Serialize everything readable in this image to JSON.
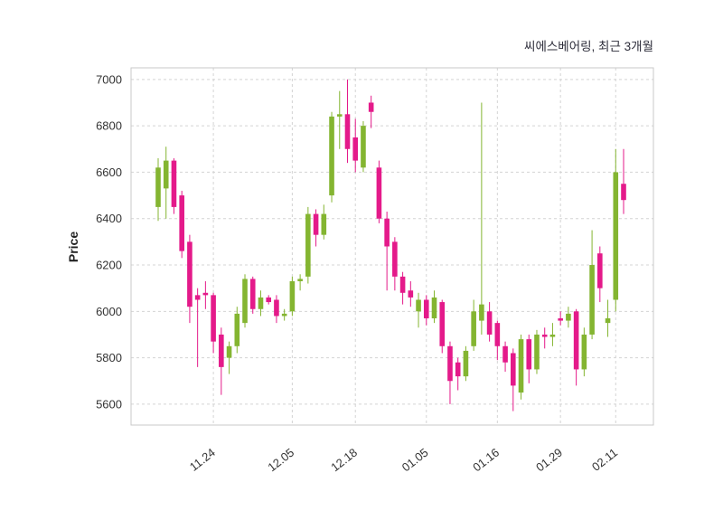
{
  "chart_data": {
    "type": "candlestick",
    "title": "씨에스베어링, 최근 3개월",
    "ylabel": "Price",
    "xlabel": "",
    "ylim": [
      5510,
      7050
    ],
    "yticks": [
      5600,
      5800,
      6000,
      6200,
      6400,
      6600,
      6800,
      7000
    ],
    "grid": true,
    "legend": "none",
    "up_color": "#84b531",
    "down_color": "#e41a8a",
    "grid_color": "#d4d4d4",
    "border_color": "#c9c9c9",
    "ohlc_format": [
      "open",
      "high",
      "low",
      "close"
    ],
    "xticks": [
      {
        "i": 7,
        "label": "11.24"
      },
      {
        "i": 17,
        "label": "12.05"
      },
      {
        "i": 25,
        "label": "12.18"
      },
      {
        "i": 34,
        "label": "01.05"
      },
      {
        "i": 43,
        "label": "01.16"
      },
      {
        "i": 51,
        "label": "01.29"
      },
      {
        "i": 58,
        "label": "02.11"
      }
    ],
    "candles": [
      [
        6450,
        6660,
        6390,
        6620
      ],
      [
        6530,
        6710,
        6400,
        6650
      ],
      [
        6650,
        6660,
        6420,
        6450
      ],
      [
        6500,
        6520,
        6230,
        6260
      ],
      [
        6300,
        6330,
        5950,
        6020
      ],
      [
        6070,
        6100,
        5760,
        6050
      ],
      [
        6080,
        6130,
        6010,
        6070
      ],
      [
        6070,
        6080,
        5820,
        5870
      ],
      [
        5900,
        5930,
        5640,
        5760
      ],
      [
        5800,
        5870,
        5730,
        5850
      ],
      [
        5850,
        6020,
        5820,
        5990
      ],
      [
        5950,
        6160,
        5930,
        6140
      ],
      [
        6140,
        6150,
        5990,
        6010
      ],
      [
        6010,
        6090,
        5980,
        6060
      ],
      [
        6060,
        6070,
        6030,
        6040
      ],
      [
        6050,
        6070,
        5950,
        5980
      ],
      [
        5980,
        6010,
        5960,
        5990
      ],
      [
        6000,
        6150,
        5980,
        6130
      ],
      [
        6130,
        6160,
        6090,
        6140
      ],
      [
        6150,
        6450,
        6120,
        6420
      ],
      [
        6420,
        6440,
        6280,
        6330
      ],
      [
        6330,
        6460,
        6310,
        6420
      ],
      [
        6500,
        6860,
        6470,
        6840
      ],
      [
        6840,
        6950,
        6700,
        6850
      ],
      [
        6850,
        7000,
        6640,
        6700
      ],
      [
        6750,
        6830,
        6600,
        6650
      ],
      [
        6620,
        6820,
        6600,
        6800
      ],
      [
        6900,
        6930,
        6790,
        6860
      ],
      [
        6620,
        6650,
        6380,
        6400
      ],
      [
        6400,
        6430,
        6090,
        6280
      ],
      [
        6300,
        6320,
        6090,
        6150
      ],
      [
        6150,
        6170,
        6030,
        6080
      ],
      [
        6090,
        6130,
        6020,
        6060
      ],
      [
        6000,
        6080,
        5930,
        6050
      ],
      [
        6050,
        6070,
        5940,
        5970
      ],
      [
        5970,
        6090,
        5950,
        6060
      ],
      [
        6040,
        6050,
        5820,
        5850
      ],
      [
        5850,
        5870,
        5600,
        5700
      ],
      [
        5780,
        5800,
        5660,
        5720
      ],
      [
        5720,
        5850,
        5700,
        5830
      ],
      [
        5850,
        6050,
        5830,
        6000
      ],
      [
        5960,
        6900,
        5900,
        6030
      ],
      [
        6000,
        6040,
        5870,
        5900
      ],
      [
        5950,
        5960,
        5790,
        5850
      ],
      [
        5850,
        5870,
        5740,
        5780
      ],
      [
        5820,
        5840,
        5570,
        5680
      ],
      [
        5650,
        5900,
        5620,
        5880
      ],
      [
        5880,
        5900,
        5690,
        5750
      ],
      [
        5750,
        5920,
        5730,
        5900
      ],
      [
        5900,
        5930,
        5840,
        5890
      ],
      [
        5890,
        5950,
        5850,
        5900
      ],
      [
        5970,
        6000,
        5940,
        5960
      ],
      [
        5960,
        6020,
        5930,
        5990
      ],
      [
        6000,
        6010,
        5680,
        5750
      ],
      [
        5750,
        5930,
        5720,
        5900
      ],
      [
        5900,
        6350,
        5880,
        6200
      ],
      [
        6250,
        6280,
        6040,
        6100
      ],
      [
        5950,
        6050,
        5890,
        5970
      ],
      [
        6050,
        6700,
        6000,
        6600
      ],
      [
        6550,
        6700,
        6420,
        6480
      ]
    ]
  }
}
